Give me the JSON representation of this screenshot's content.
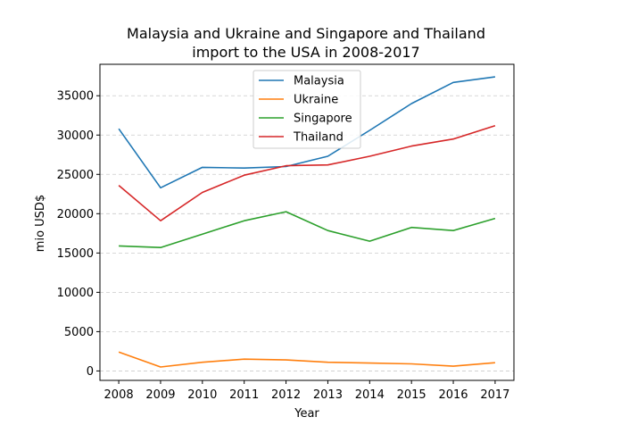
{
  "chart_data": {
    "type": "line",
    "title_line1": "Malaysia and Ukraine and Singapore and Thailand",
    "title_line2": "import to the USA in 2008-2017",
    "xlabel": "Year",
    "ylabel": "mio USD$",
    "x": [
      2008,
      2009,
      2010,
      2011,
      2012,
      2013,
      2014,
      2015,
      2016,
      2017
    ],
    "x_ticks": [
      "2008",
      "2009",
      "2010",
      "2011",
      "2012",
      "2013",
      "2014",
      "2015",
      "2016",
      "2017"
    ],
    "y_ticks": [
      0,
      5000,
      10000,
      15000,
      20000,
      25000,
      30000,
      35000
    ],
    "ylim": [
      -1200,
      39000
    ],
    "xlim": [
      2007.55,
      2017.45
    ],
    "grid": "horizontal dashed",
    "legend_position": "upper-center",
    "series": [
      {
        "name": "Malaysia",
        "color": "#1f77b4",
        "values": [
          30800,
          23300,
          25900,
          25800,
          26000,
          27300,
          30600,
          34000,
          36700,
          37400
        ]
      },
      {
        "name": "Ukraine",
        "color": "#ff7f0e",
        "values": [
          2400,
          500,
          1100,
          1500,
          1400,
          1100,
          1000,
          900,
          600,
          1050
        ]
      },
      {
        "name": "Singapore",
        "color": "#2ca02c",
        "values": [
          15900,
          15700,
          17400,
          19100,
          20250,
          17850,
          16500,
          18250,
          17850,
          19400
        ]
      },
      {
        "name": "Thailand",
        "color": "#d62728",
        "values": [
          23600,
          19100,
          22700,
          24900,
          26100,
          26200,
          27300,
          28600,
          29500,
          31200
        ]
      }
    ]
  }
}
